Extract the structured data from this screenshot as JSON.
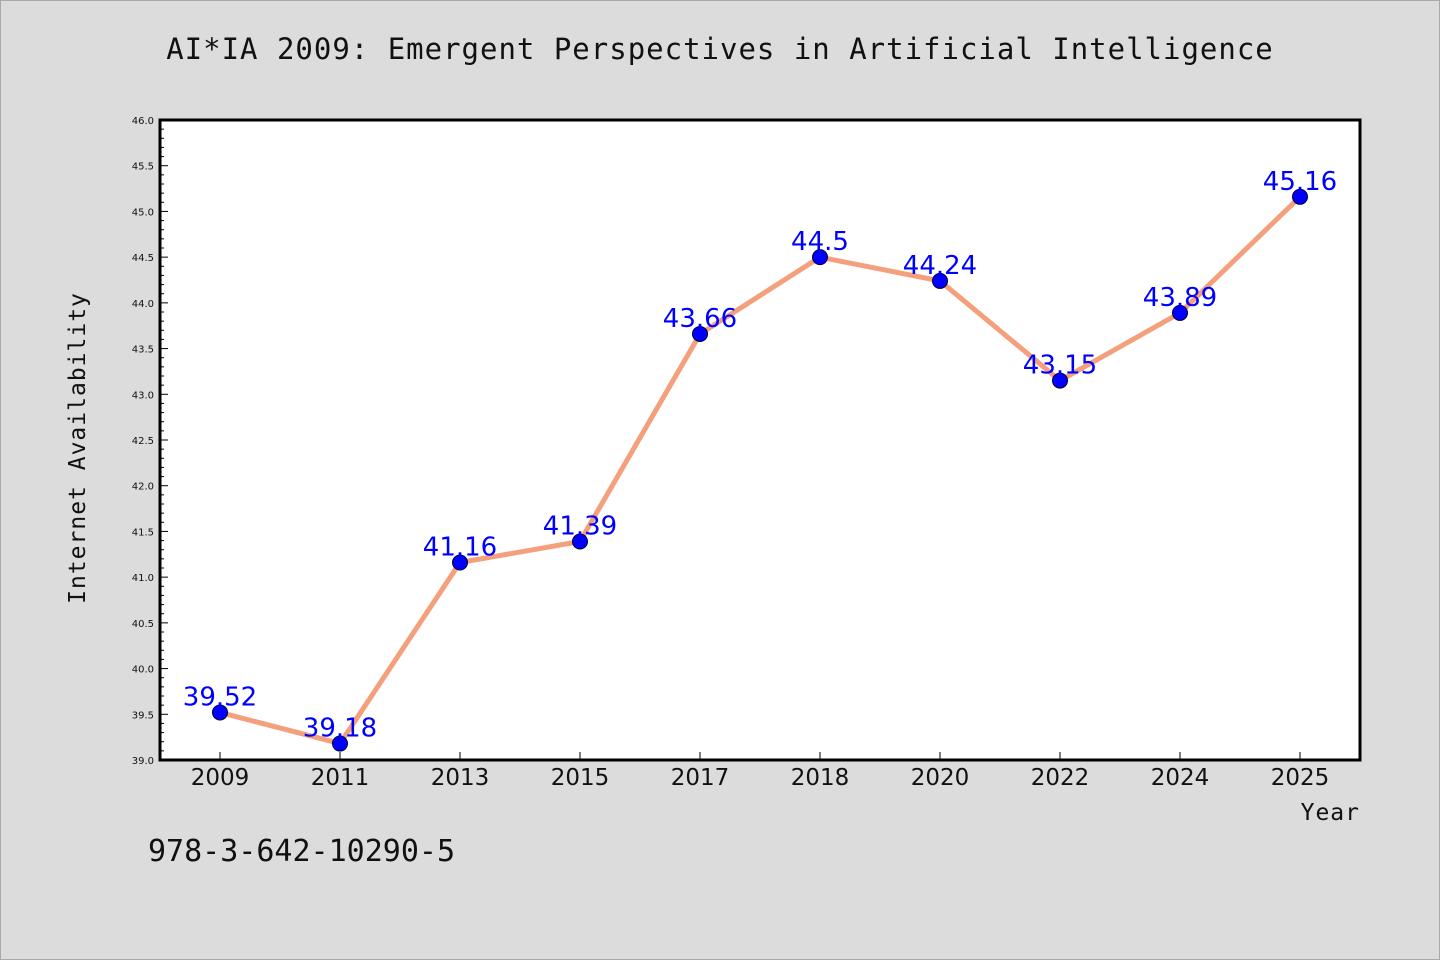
{
  "chart_data": {
    "type": "line",
    "title": "AI*IA 2009: Emergent Perspectives in Artificial Intelligence",
    "xlabel": "Year",
    "ylabel": "Internet Availability",
    "categories": [
      "2009",
      "2011",
      "2013",
      "2015",
      "2017",
      "2018",
      "2020",
      "2022",
      "2024",
      "2025"
    ],
    "series": [
      {
        "values": [
          39.52,
          39.18,
          41.16,
          41.39,
          43.66,
          44.5,
          44.24,
          43.15,
          43.89,
          45.16
        ]
      }
    ],
    "data_labels": [
      "39.52",
      "39.18",
      "41.16",
      "41.39",
      "43.66",
      "44.5",
      "44.24",
      "43.15",
      "43.89",
      "45.16"
    ],
    "y_ticks": [
      "39.0",
      "39.5",
      "40.0",
      "40.5",
      "41.0",
      "41.5",
      "42.0",
      "42.5",
      "43.0",
      "43.5",
      "44.0",
      "44.5",
      "45.0",
      "45.5",
      "46.0"
    ],
    "ylim": [
      39.0,
      46.0
    ],
    "grid": false,
    "colors": {
      "line": "#f4a07c",
      "marker": "#0000ff",
      "label": "#0000ff",
      "background": "#dcdcdc",
      "plot_background": "#ffffff"
    }
  },
  "footer": {
    "isbn": "978-3-642-10290-5"
  }
}
